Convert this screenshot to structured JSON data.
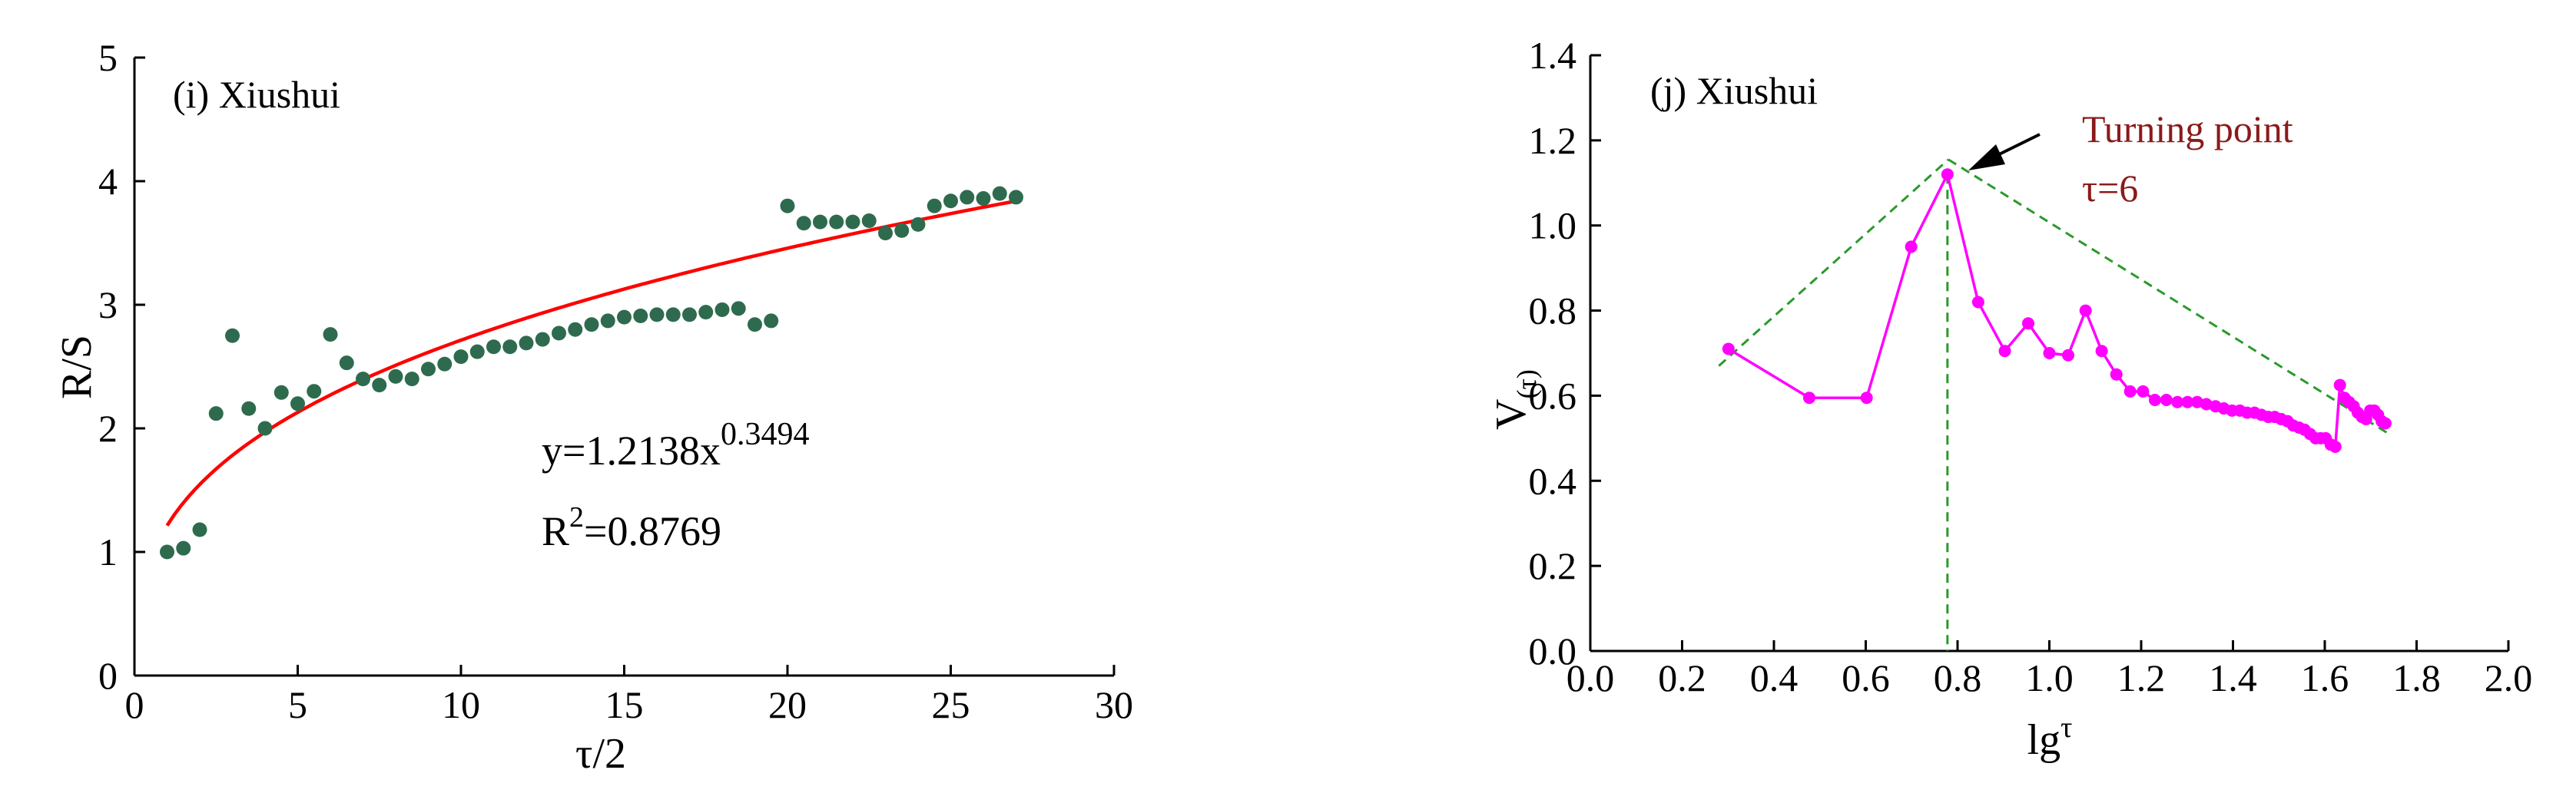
{
  "chart_data": [
    {
      "type": "scatter",
      "panel_label": "(i) Xiushui",
      "xlabel": "τ/2",
      "ylabel": "R/S",
      "xlim": [
        0,
        30
      ],
      "ylim": [
        0,
        5
      ],
      "x_ticks": [
        "0",
        "5",
        "10",
        "15",
        "20",
        "25",
        "30"
      ],
      "y_ticks": [
        "0",
        "1",
        "2",
        "3",
        "4",
        "5"
      ],
      "colors": {
        "points": "#2e6b4e",
        "fit": "#ff0000"
      },
      "series": [
        {
          "x": [
            1,
            1.5,
            2,
            2.5,
            3,
            3.5,
            4,
            4.5,
            5,
            5.5,
            6,
            6.5,
            7,
            7.5,
            8,
            8.5,
            9,
            9.5,
            10,
            10.5,
            11,
            11.5,
            12,
            12.5,
            13,
            13.5,
            14,
            14.5,
            15,
            15.5,
            16,
            16.5,
            17,
            17.5,
            18,
            18.5,
            19,
            19.5,
            20,
            20.5,
            21,
            21.5,
            22,
            22.5,
            23,
            23.5,
            24,
            24.5,
            25,
            25.5,
            26,
            26.5,
            27
          ],
          "y": [
            1.0,
            1.03,
            1.18,
            2.12,
            2.75,
            2.16,
            2.0,
            2.29,
            2.2,
            2.3,
            2.76,
            2.53,
            2.4,
            2.35,
            2.42,
            2.4,
            2.48,
            2.52,
            2.58,
            2.62,
            2.66,
            2.66,
            2.69,
            2.72,
            2.77,
            2.8,
            2.84,
            2.87,
            2.9,
            2.91,
            2.92,
            2.92,
            2.92,
            2.94,
            2.96,
            2.97,
            2.84,
            2.87,
            3.8,
            3.66,
            3.67,
            3.67,
            3.67,
            3.68,
            3.58,
            3.6,
            3.65,
            3.8,
            3.84,
            3.87,
            3.86,
            3.9,
            3.87
          ]
        }
      ],
      "fit": {
        "a": 1.2138,
        "b": 0.3494,
        "x_range": [
          1,
          27
        ]
      },
      "annotations": [
        "y=1.2138x",
        "0.3494",
        "R",
        "2",
        "=0.8769"
      ]
    },
    {
      "type": "line",
      "panel_label": "(j) Xiushui",
      "xlabel": "lg",
      "xlabel_sup": "τ",
      "ylabel": "V",
      "ylabel_sub": "(τ)",
      "xlim": [
        0,
        2.0
      ],
      "ylim": [
        0,
        1.4
      ],
      "x_ticks": [
        "0.0",
        "0.2",
        "0.4",
        "0.6",
        "0.8",
        "1.0",
        "1.2",
        "1.4",
        "1.6",
        "1.8",
        "2.0"
      ],
      "y_ticks": [
        "0.0",
        "0.2",
        "0.4",
        "0.6",
        "0.8",
        "1.0",
        "1.2",
        "1.4"
      ],
      "colors": {
        "line": "#ff00ff",
        "dashed": "#2a9a2a",
        "arrow": "#000000"
      },
      "series": [
        {
          "x": [
            0.301,
            0.477,
            0.602,
            0.699,
            0.778,
            0.845,
            0.903,
            0.954,
            1.0,
            1.041,
            1.079,
            1.114,
            1.146,
            1.176,
            1.204,
            1.23,
            1.255,
            1.279,
            1.301,
            1.322,
            1.342,
            1.362,
            1.38,
            1.398,
            1.415,
            1.431,
            1.447,
            1.462,
            1.477,
            1.491,
            1.505,
            1.519,
            1.531,
            1.544,
            1.556,
            1.568,
            1.58,
            1.591,
            1.602,
            1.613,
            1.623,
            1.633,
            1.643,
            1.653,
            1.663,
            1.672,
            1.681,
            1.69,
            1.699,
            1.708,
            1.716,
            1.724,
            1.732
          ],
          "y": [
            0.71,
            0.595,
            0.595,
            0.95,
            1.12,
            0.82,
            0.705,
            0.77,
            0.7,
            0.695,
            0.8,
            0.705,
            0.65,
            0.61,
            0.61,
            0.59,
            0.59,
            0.585,
            0.585,
            0.585,
            0.58,
            0.575,
            0.57,
            0.565,
            0.565,
            0.56,
            0.56,
            0.555,
            0.55,
            0.55,
            0.545,
            0.54,
            0.53,
            0.525,
            0.52,
            0.51,
            0.5,
            0.5,
            0.5,
            0.485,
            0.48,
            0.625,
            0.595,
            0.585,
            0.575,
            0.56,
            0.55,
            0.545,
            0.565,
            0.565,
            0.555,
            0.54,
            0.535
          ]
        }
      ],
      "trend_lines": [
        {
          "x": [
            0.28,
            0.78
          ],
          "y": [
            0.67,
            1.155
          ]
        },
        {
          "x": [
            0.78,
            1.74
          ],
          "y": [
            1.155,
            0.51
          ]
        }
      ],
      "vertical_line_x": 0.778,
      "annotations": [
        "Turning point",
        "τ=6"
      ]
    }
  ]
}
